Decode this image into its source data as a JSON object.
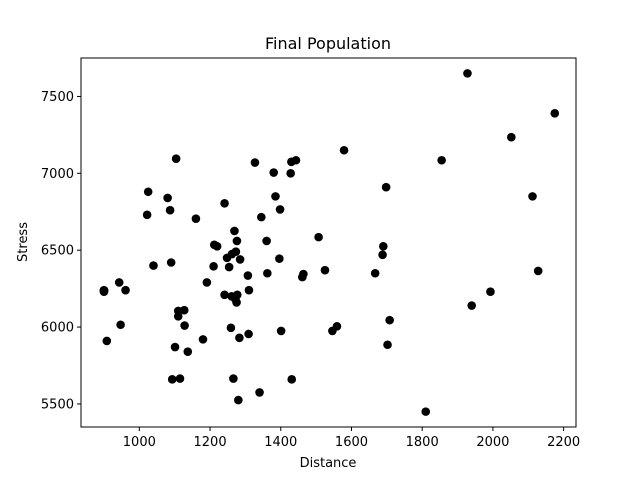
{
  "chart_data": {
    "type": "scatter",
    "title": "Final Population",
    "xlabel": "Distance",
    "ylabel": "Stress",
    "xlim": [
      835,
      2235
    ],
    "ylim": [
      5350,
      7750
    ],
    "xticks": [
      1000,
      1200,
      1400,
      1600,
      1800,
      2000,
      2200
    ],
    "yticks": [
      5500,
      6000,
      6500,
      7000,
      7500
    ],
    "marker_color": "#000000",
    "grid": false,
    "points": [
      [
        900,
        6235
      ],
      [
        900,
        6240
      ],
      [
        900,
        6230
      ],
      [
        900,
        6238
      ],
      [
        900,
        6232
      ],
      [
        908,
        5910
      ],
      [
        943,
        6290
      ],
      [
        947,
        6015
      ],
      [
        961,
        6240
      ],
      [
        1022,
        6730
      ],
      [
        1025,
        6880
      ],
      [
        1040,
        6400
      ],
      [
        1080,
        6840
      ],
      [
        1087,
        6760
      ],
      [
        1090,
        6420
      ],
      [
        1093,
        5660
      ],
      [
        1101,
        5870
      ],
      [
        1104,
        7095
      ],
      [
        1110,
        6105
      ],
      [
        1110,
        6070
      ],
      [
        1115,
        5665
      ],
      [
        1127,
        6110
      ],
      [
        1128,
        6010
      ],
      [
        1137,
        5840
      ],
      [
        1160,
        6705
      ],
      [
        1180,
        5920
      ],
      [
        1191,
        6290
      ],
      [
        1210,
        6395
      ],
      [
        1212,
        6535
      ],
      [
        1220,
        6525
      ],
      [
        1241,
        6805
      ],
      [
        1241,
        6210
      ],
      [
        1248,
        6450
      ],
      [
        1254,
        6390
      ],
      [
        1259,
        5995
      ],
      [
        1261,
        6200
      ],
      [
        1262,
        6475
      ],
      [
        1266,
        5665
      ],
      [
        1269,
        6625
      ],
      [
        1272,
        6180
      ],
      [
        1273,
        6490
      ],
      [
        1275,
        6160
      ],
      [
        1276,
        6560
      ],
      [
        1277,
        6210
      ],
      [
        1280,
        5525
      ],
      [
        1283,
        5930
      ],
      [
        1285,
        6440
      ],
      [
        1307,
        6335
      ],
      [
        1309,
        5955
      ],
      [
        1310,
        6240
      ],
      [
        1327,
        7070
      ],
      [
        1340,
        5575
      ],
      [
        1345,
        6715
      ],
      [
        1360,
        6560
      ],
      [
        1362,
        6350
      ],
      [
        1380,
        7005
      ],
      [
        1385,
        6850
      ],
      [
        1396,
        6445
      ],
      [
        1398,
        6765
      ],
      [
        1401,
        5975
      ],
      [
        1428,
        7000
      ],
      [
        1430,
        7075
      ],
      [
        1431,
        5660
      ],
      [
        1443,
        7085
      ],
      [
        1461,
        6325
      ],
      [
        1464,
        6345
      ],
      [
        1507,
        6585
      ],
      [
        1525,
        6370
      ],
      [
        1546,
        5975
      ],
      [
        1559,
        6005
      ],
      [
        1579,
        7150
      ],
      [
        1667,
        6350
      ],
      [
        1688,
        6470
      ],
      [
        1690,
        6525
      ],
      [
        1698,
        6910
      ],
      [
        1702,
        5885
      ],
      [
        1708,
        6045
      ],
      [
        1810,
        5450
      ],
      [
        1855,
        7085
      ],
      [
        1928,
        7650
      ],
      [
        1940,
        6140
      ],
      [
        1993,
        6230
      ],
      [
        2052,
        7235
      ],
      [
        2112,
        6850
      ],
      [
        2128,
        6365
      ],
      [
        2175,
        7390
      ]
    ]
  }
}
